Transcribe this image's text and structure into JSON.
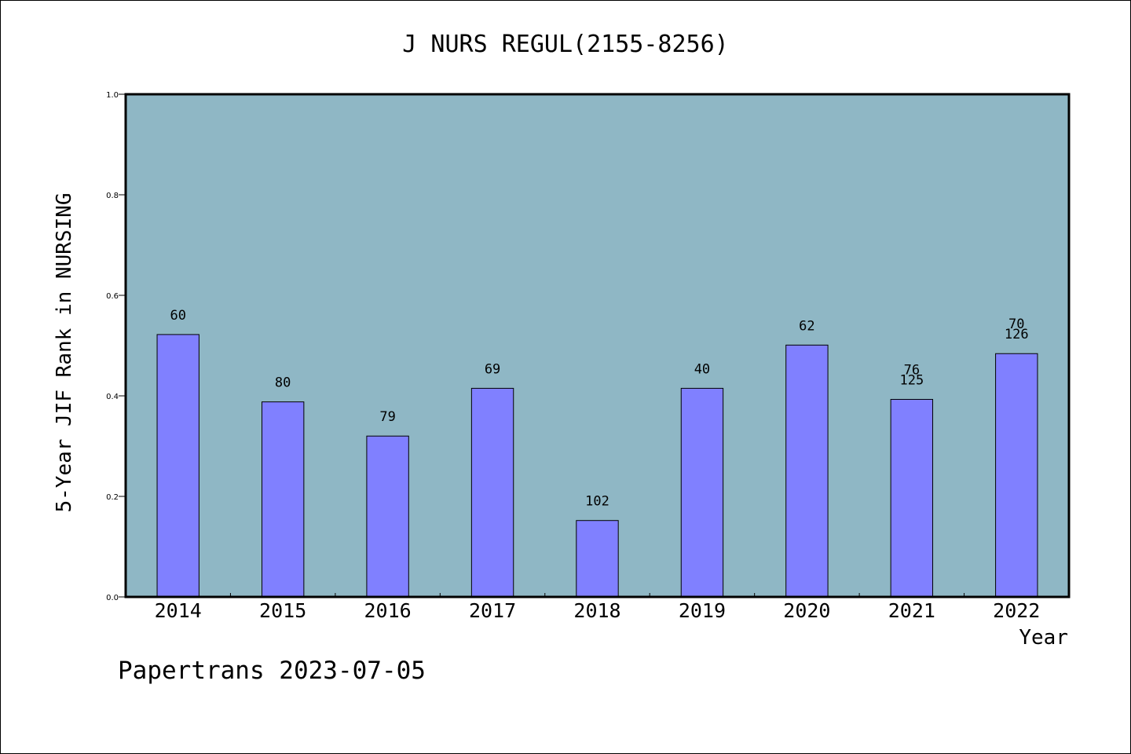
{
  "chart_data": {
    "type": "bar",
    "title": "J NURS REGUL(2155-8256)",
    "xlabel": "Year",
    "ylabel": "5-Year JIF Rank in NURSING",
    "ylim": [
      0,
      1.0
    ],
    "yticks": [
      "0.0",
      "0.2",
      "0.4",
      "0.6",
      "0.8",
      "1.0"
    ],
    "categories": [
      "2014",
      "2015",
      "2016",
      "2017",
      "2018",
      "2019",
      "2020",
      "2021",
      "2022"
    ],
    "values": [
      0.522,
      0.388,
      0.32,
      0.415,
      0.152,
      0.415,
      0.501,
      0.393,
      0.484
    ],
    "data_labels": [
      [
        "60"
      ],
      [
        "80"
      ],
      [
        "79"
      ],
      [
        "69"
      ],
      [
        "102"
      ],
      [
        "40"
      ],
      [
        "62"
      ],
      [
        "76",
        "125"
      ],
      [
        "70",
        "126"
      ]
    ],
    "grid": false,
    "colors": {
      "plot_background": "#8fb7c5",
      "bar_fill": "#8080ff",
      "bar_stroke": "#000000"
    }
  },
  "footer": {
    "watermark": "Papertrans 2023-07-05"
  }
}
